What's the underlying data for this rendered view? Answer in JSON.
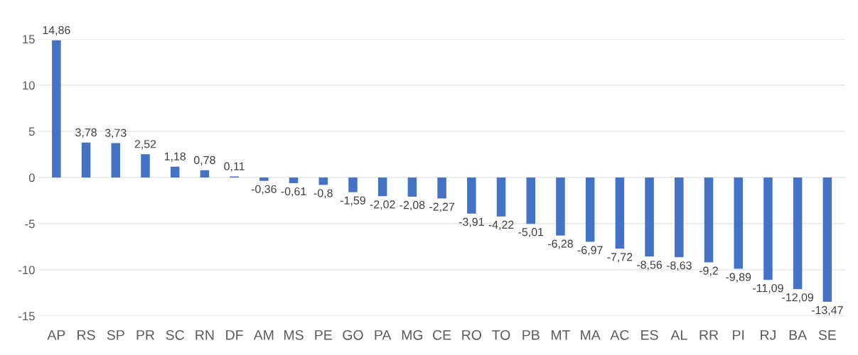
{
  "chart_data": {
    "type": "bar",
    "categories": [
      "AP",
      "RS",
      "SP",
      "PR",
      "SC",
      "RN",
      "DF",
      "AM",
      "MS",
      "PE",
      "GO",
      "PA",
      "MG",
      "CE",
      "RO",
      "TO",
      "PB",
      "MT",
      "MA",
      "AC",
      "ES",
      "AL",
      "RR",
      "PI",
      "RJ",
      "BA",
      "SE"
    ],
    "values": [
      14.86,
      3.78,
      3.73,
      2.52,
      1.18,
      0.78,
      0.11,
      -0.36,
      -0.61,
      -0.8,
      -1.59,
      -2.02,
      -2.08,
      -2.27,
      -3.91,
      -4.22,
      -5.01,
      -6.28,
      -6.97,
      -7.72,
      -8.56,
      -8.63,
      -9.2,
      -9.89,
      -11.09,
      -12.09,
      -13.47
    ],
    "value_labels": [
      "14,86",
      "3,78",
      "3,73",
      "2,52",
      "1,18",
      "0,78",
      "0,11",
      "-0,36",
      "-0,61",
      "-0,8",
      "-1,59",
      "-2,02",
      "-2,08",
      "-2,27",
      "-3,91",
      "-4,22",
      "-5,01",
      "-6,28",
      "-6,97",
      "-7,72",
      "-8,56",
      "-8,63",
      "-9,2",
      "-9,89",
      "-11,09",
      "-12,09",
      "-13,47"
    ],
    "color": "#4472c4",
    "ylim": [
      -15,
      15
    ],
    "yticks": [
      -15,
      -10,
      -5,
      0,
      5,
      10,
      15
    ],
    "grid": "y"
  }
}
